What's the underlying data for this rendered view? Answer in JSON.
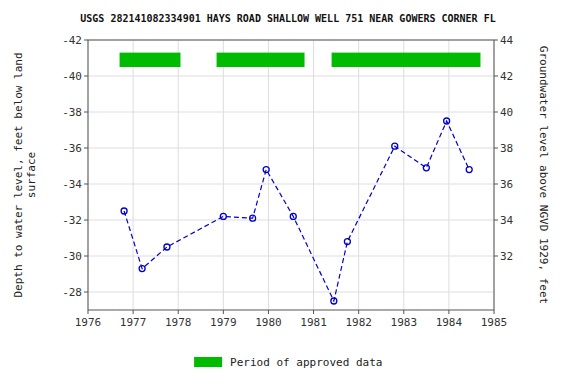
{
  "chart_data": {
    "type": "line",
    "title": "USGS 282141082334901 HAYS ROAD SHALLOW WELL 751 NEAR GOWERS CORNER FL",
    "x": [
      1976.8,
      1977.2,
      1977.75,
      1979.0,
      1979.65,
      1979.95,
      1980.55,
      1981.45,
      1981.75,
      1982.8,
      1983.5,
      1983.95,
      1984.45
    ],
    "series": [
      {
        "values": [
          -32.5,
          -29.3,
          -30.5,
          -32.2,
          -32.1,
          -34.8,
          -32.2,
          -27.5,
          -30.8,
          -36.1,
          -34.9,
          -37.5,
          -34.8
        ],
        "color": "#0000cc",
        "marker": "circle",
        "line_style": "dashed"
      }
    ],
    "periods": {
      "name": "Period of approved data",
      "color": "#00bb00",
      "y": -41.3,
      "height": 0.8,
      "ranges": [
        {
          "start": 1976.7,
          "end": 1978.05
        },
        {
          "start": 1978.85,
          "end": 1980.8
        },
        {
          "start": 1981.4,
          "end": 1984.7
        }
      ]
    },
    "xlim": [
      1976,
      1985
    ],
    "xticks": [
      1976,
      1977,
      1978,
      1979,
      1980,
      1981,
      1982,
      1983,
      1984,
      1985
    ],
    "ylim": [
      -27,
      -42
    ],
    "yticks": [
      -42,
      -40,
      -38,
      -36,
      -34,
      -32,
      -30,
      -28
    ],
    "y2lim": [
      29,
      44
    ],
    "y2ticks": [
      44,
      42,
      40,
      38,
      36,
      34,
      32
    ],
    "ylabel": "Depth to water level, feet below land\nsurface",
    "y2label": "Groundwater level above NGVD 1929, feet",
    "grid": true,
    "legend": "bottom"
  }
}
